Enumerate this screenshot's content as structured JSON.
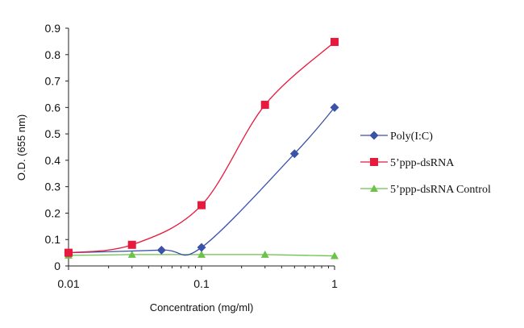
{
  "chart_data": {
    "type": "line",
    "xlabel": "Concentration (mg/ml)",
    "ylabel": "O.D. (655 nm)",
    "xscale": "log",
    "xlim": [
      0.01,
      1
    ],
    "ylim": [
      0,
      0.9
    ],
    "x_ticks": [
      "0.01",
      "0.1",
      "1"
    ],
    "y_ticks": [
      "0",
      "0.1",
      "0.2",
      "0.3",
      "0.4",
      "0.5",
      "0.6",
      "0.7",
      "0.8",
      "0.9"
    ],
    "grid": false,
    "legend_position": "right",
    "series": [
      {
        "name": "Poly(I:C)",
        "color": "#3a52a8",
        "marker": "diamond",
        "smooth": true,
        "x": [
          0.01,
          0.05,
          0.1,
          0.5,
          1
        ],
        "y": [
          0.05,
          0.06,
          0.07,
          0.425,
          0.6
        ]
      },
      {
        "name": "5’ppp-dsRNA",
        "color": "#e8193c",
        "marker": "square",
        "smooth": true,
        "x": [
          0.01,
          0.03,
          0.1,
          0.3,
          1
        ],
        "y": [
          0.05,
          0.08,
          0.23,
          0.61,
          0.848
        ]
      },
      {
        "name": "5’ppp-dsRNA Control",
        "color": "#6cc24a",
        "marker": "triangle",
        "smooth": false,
        "x": [
          0.01,
          0.03,
          0.1,
          0.3,
          1
        ],
        "y": [
          0.04,
          0.043,
          0.043,
          0.043,
          0.038
        ]
      }
    ]
  }
}
